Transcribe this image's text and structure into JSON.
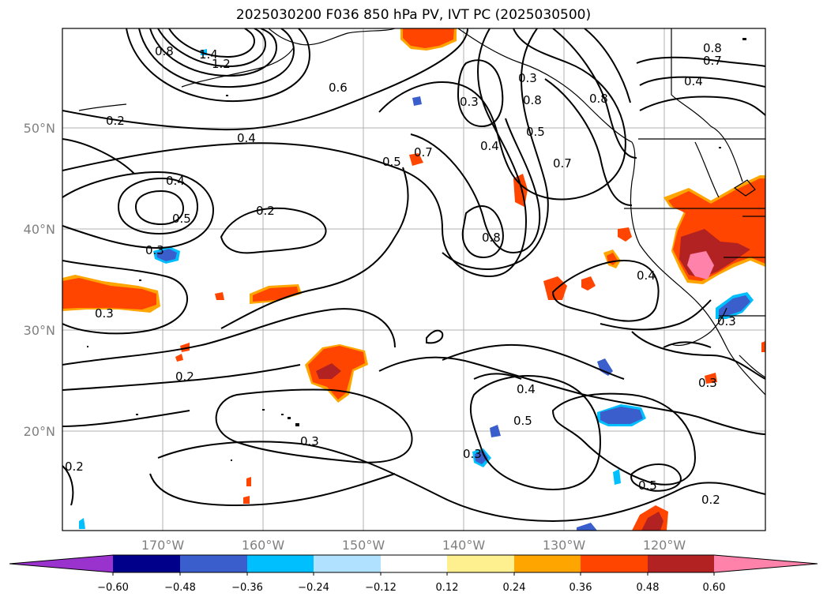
{
  "title": "2025030200 F036 850 hPa PV, IVT PC (2025030500)",
  "lat_labels": [
    "50°N",
    "40°N",
    "30°N",
    "20°N"
  ],
  "lon_labels": [
    "170°W",
    "160°W",
    "150°W",
    "140°W",
    "130°W",
    "120°W"
  ],
  "colorbar": {
    "ticks": [
      "−0.60",
      "−0.48",
      "−0.36",
      "−0.24",
      "−0.12",
      "0.12",
      "0.24",
      "0.36",
      "0.48",
      "0.60"
    ],
    "colors": [
      "#9a32cd",
      "#00008b",
      "#3a5fcd",
      "#00bfff",
      "#b0e2ff",
      "#ffffff",
      "#fff08f",
      "#ffa500",
      "#ff4500",
      "#b22222",
      "#ff82ab"
    ]
  },
  "contour_labels": [
    "0.8",
    "1.4",
    "1.2",
    "0.6",
    "0.2",
    "0.4",
    "0.5",
    "0.7",
    "0.3",
    "0.8",
    "0.8",
    "0.7",
    "0.4",
    "0.3",
    "0.4",
    "0.5",
    "0.7",
    "0.8",
    "0.4",
    "0.5",
    "0.3",
    "0.2",
    "0.3",
    "0.2",
    "0.4",
    "0.5",
    "0.3",
    "0.3",
    "0.5",
    "0.2",
    "0.3",
    "0.2",
    "0.4",
    "0.8",
    "0.3"
  ]
}
